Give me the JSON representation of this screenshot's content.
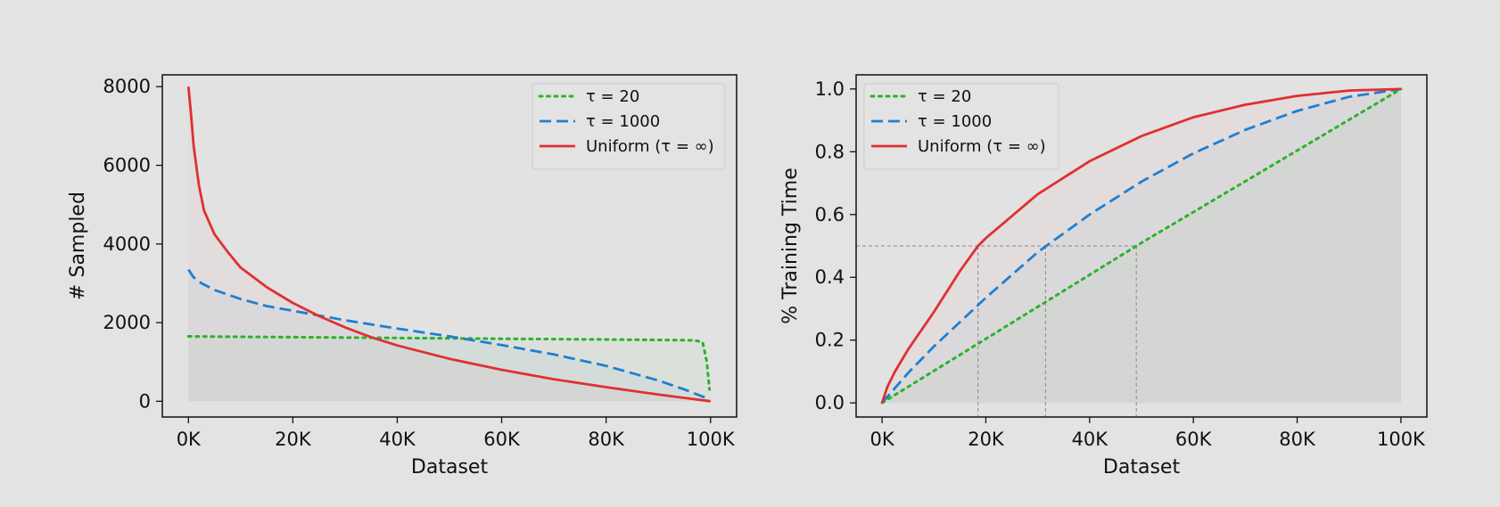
{
  "chart_data": [
    {
      "type": "line",
      "xlabel": "Dataset",
      "ylabel": "# Sampled",
      "xlim": [
        -5000,
        105000
      ],
      "ylim": [
        -400,
        8300
      ],
      "xticks": [
        0,
        20000,
        40000,
        60000,
        80000,
        100000
      ],
      "xtick_labels": [
        "0K",
        "20K",
        "40K",
        "60K",
        "80K",
        "100K"
      ],
      "yticks": [
        0,
        2000,
        4000,
        6000,
        8000
      ],
      "ytick_labels": [
        "0",
        "2000",
        "4000",
        "6000",
        "8000"
      ],
      "grid": false,
      "legend_position": "upper right",
      "series": [
        {
          "name": "τ = 20",
          "color": "#2ab32a",
          "style": "dotted",
          "x": [
            0,
            10000,
            20000,
            30000,
            40000,
            50000,
            60000,
            70000,
            80000,
            90000,
            97000,
            98500,
            99300,
            99800
          ],
          "values": [
            1650,
            1640,
            1630,
            1620,
            1610,
            1600,
            1590,
            1580,
            1570,
            1560,
            1550,
            1500,
            1000,
            300
          ]
        },
        {
          "name": "τ = 1000",
          "color": "#1f7fd1",
          "style": "dashed",
          "x": [
            0,
            1000,
            2500,
            5000,
            10000,
            15000,
            20000,
            30000,
            40000,
            50000,
            60000,
            70000,
            80000,
            90000,
            95000,
            99800
          ],
          "values": [
            3350,
            3150,
            3000,
            2830,
            2600,
            2420,
            2300,
            2060,
            1850,
            1650,
            1430,
            1190,
            900,
            530,
            300,
            50
          ]
        },
        {
          "name": "Uniform (τ = ∞)",
          "color": "#e03030",
          "style": "solid",
          "x": [
            0,
            500,
            1000,
            2000,
            3000,
            5000,
            7500,
            10000,
            15000,
            20000,
            25000,
            30000,
            35000,
            40000,
            50000,
            60000,
            70000,
            80000,
            90000,
            100000
          ],
          "values": [
            8000,
            7300,
            6500,
            5500,
            4850,
            4250,
            3800,
            3400,
            2900,
            2500,
            2170,
            1880,
            1630,
            1420,
            1080,
            800,
            560,
            360,
            170,
            0
          ]
        }
      ]
    },
    {
      "type": "line",
      "xlabel": "Dataset",
      "ylabel": "% Training Time",
      "xlim": [
        -5000,
        105000
      ],
      "ylim": [
        -0.045,
        1.045
      ],
      "xticks": [
        0,
        20000,
        40000,
        60000,
        80000,
        100000
      ],
      "xtick_labels": [
        "0K",
        "20K",
        "40K",
        "60K",
        "80K",
        "100K"
      ],
      "yticks": [
        0.0,
        0.2,
        0.4,
        0.6,
        0.8,
        1.0
      ],
      "ytick_labels": [
        "0.0",
        "0.2",
        "0.4",
        "0.6",
        "0.8",
        "1.0"
      ],
      "grid": false,
      "legend_position": "upper left",
      "reference_level": 0.5,
      "reference_x": [
        18500,
        31500,
        49000
      ],
      "series": [
        {
          "name": "τ = 20",
          "color": "#2ab32a",
          "style": "dotted",
          "x": [
            0,
            50000,
            100000
          ],
          "values": [
            0.0,
            0.51,
            1.0
          ]
        },
        {
          "name": "τ = 1000",
          "color": "#1f7fd1",
          "style": "dashed",
          "x": [
            0,
            5000,
            10000,
            20000,
            30000,
            40000,
            50000,
            60000,
            70000,
            80000,
            90000,
            100000
          ],
          "values": [
            0.0,
            0.095,
            0.18,
            0.335,
            0.48,
            0.6,
            0.705,
            0.795,
            0.87,
            0.93,
            0.975,
            1.0
          ]
        },
        {
          "name": "Uniform (τ = ∞)",
          "color": "#e03030",
          "style": "solid",
          "x": [
            0,
            1000,
            2500,
            5000,
            10000,
            15000,
            18500,
            20000,
            30000,
            40000,
            50000,
            60000,
            70000,
            80000,
            90000,
            100000
          ],
          "values": [
            0.0,
            0.05,
            0.1,
            0.17,
            0.29,
            0.42,
            0.5,
            0.525,
            0.665,
            0.77,
            0.85,
            0.91,
            0.95,
            0.978,
            0.995,
            1.0
          ]
        }
      ]
    }
  ]
}
